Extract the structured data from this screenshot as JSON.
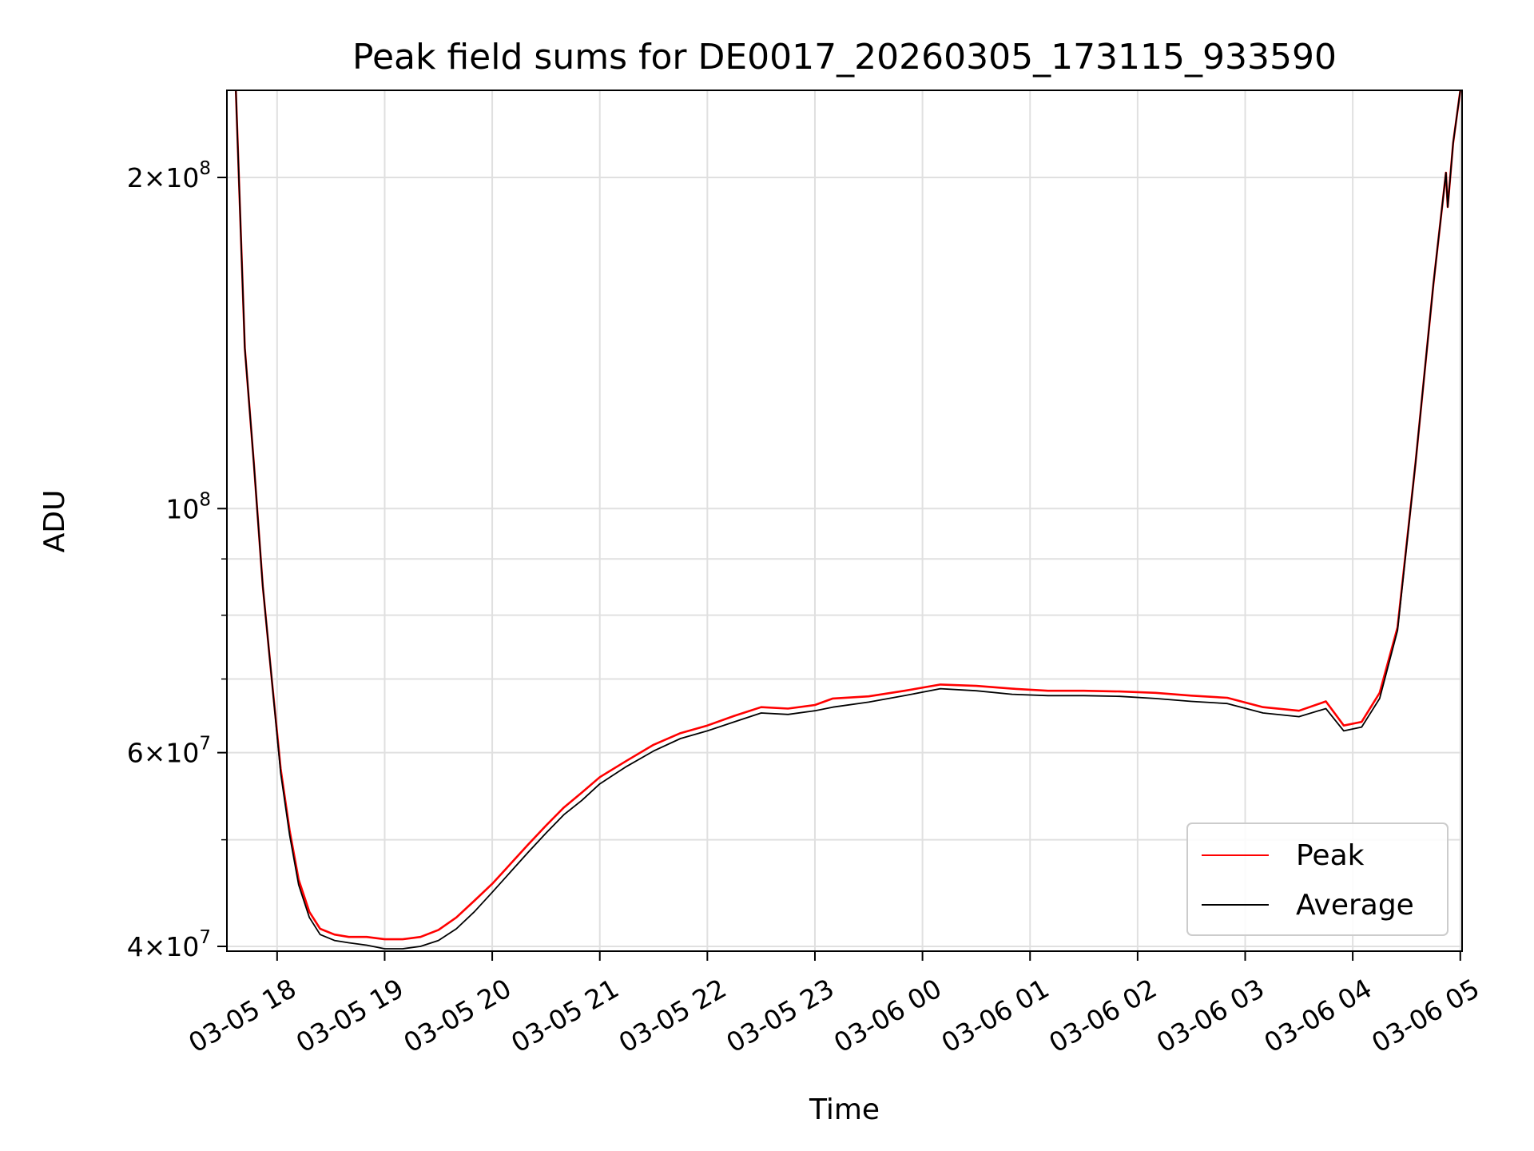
{
  "chart_data": {
    "type": "line",
    "title": "Peak field sums for DE0017_20260305_173115_933590",
    "xlabel": "Time",
    "ylabel": "ADU",
    "y_scale": "log",
    "grid": true,
    "legend_position": "lower-right",
    "xlim": [
      "2026-03-05 17:32",
      "2026-03-06 05:01"
    ],
    "ylim": [
      39600000,
      240000000
    ],
    "x_ticks": [
      {
        "value": "2026-03-05 18:00",
        "label": "03-05 18"
      },
      {
        "value": "2026-03-05 19:00",
        "label": "03-05 19"
      },
      {
        "value": "2026-03-05 20:00",
        "label": "03-05 20"
      },
      {
        "value": "2026-03-05 21:00",
        "label": "03-05 21"
      },
      {
        "value": "2026-03-05 22:00",
        "label": "03-05 22"
      },
      {
        "value": "2026-03-05 23:00",
        "label": "03-05 23"
      },
      {
        "value": "2026-03-06 00:00",
        "label": "03-06 00"
      },
      {
        "value": "2026-03-06 01:00",
        "label": "03-06 01"
      },
      {
        "value": "2026-03-06 02:00",
        "label": "03-06 02"
      },
      {
        "value": "2026-03-06 03:00",
        "label": "03-06 03"
      },
      {
        "value": "2026-03-06 04:00",
        "label": "03-06 04"
      },
      {
        "value": "2026-03-06 05:00",
        "label": "03-06 05"
      }
    ],
    "y_major_ticks": [
      {
        "value": 40000000,
        "mantissa": "4",
        "exp": "7"
      },
      {
        "value": 60000000,
        "mantissa": "6",
        "exp": "7"
      },
      {
        "value": 100000000,
        "mantissa": "",
        "exp": "8"
      },
      {
        "value": 200000000,
        "mantissa": "2",
        "exp": "8"
      }
    ],
    "y_minor_ticks": [
      50000000,
      70000000,
      80000000,
      90000000
    ],
    "series": [
      {
        "name": "Peak",
        "color": "#ff0000",
        "points": [
          [
            "2026-03-05 17:37",
            240000000
          ],
          [
            "2026-03-05 17:42",
            140000000
          ],
          [
            "2026-03-05 17:47",
            110000000
          ],
          [
            "2026-03-05 17:52",
            85000000
          ],
          [
            "2026-03-05 17:57",
            70000000
          ],
          [
            "2026-03-05 18:02",
            58000000
          ],
          [
            "2026-03-05 18:07",
            51000000
          ],
          [
            "2026-03-05 18:12",
            46000000
          ],
          [
            "2026-03-05 18:18",
            43000000
          ],
          [
            "2026-03-05 18:24",
            41500000
          ],
          [
            "2026-03-05 18:32",
            41000000
          ],
          [
            "2026-03-05 18:40",
            40800000
          ],
          [
            "2026-03-05 18:50",
            40800000
          ],
          [
            "2026-03-05 19:00",
            40600000
          ],
          [
            "2026-03-05 19:10",
            40600000
          ],
          [
            "2026-03-05 19:20",
            40800000
          ],
          [
            "2026-03-05 19:30",
            41400000
          ],
          [
            "2026-03-05 19:40",
            42500000
          ],
          [
            "2026-03-05 19:50",
            44000000
          ],
          [
            "2026-03-05 20:00",
            45600000
          ],
          [
            "2026-03-05 20:10",
            47500000
          ],
          [
            "2026-03-05 20:20",
            49500000
          ],
          [
            "2026-03-05 20:30",
            51500000
          ],
          [
            "2026-03-05 20:40",
            53500000
          ],
          [
            "2026-03-05 20:50",
            55200000
          ],
          [
            "2026-03-05 21:00",
            57000000
          ],
          [
            "2026-03-05 21:15",
            59000000
          ],
          [
            "2026-03-05 21:30",
            61000000
          ],
          [
            "2026-03-05 21:45",
            62500000
          ],
          [
            "2026-03-05 22:00",
            63500000
          ],
          [
            "2026-03-05 22:15",
            64800000
          ],
          [
            "2026-03-05 22:30",
            66000000
          ],
          [
            "2026-03-05 22:45",
            65800000
          ],
          [
            "2026-03-05 23:00",
            66300000
          ],
          [
            "2026-03-05 23:10",
            67200000
          ],
          [
            "2026-03-05 23:30",
            67500000
          ],
          [
            "2026-03-05 23:50",
            68300000
          ],
          [
            "2026-03-06 00:10",
            69200000
          ],
          [
            "2026-03-06 00:30",
            69000000
          ],
          [
            "2026-03-06 00:50",
            68600000
          ],
          [
            "2026-03-06 01:10",
            68300000
          ],
          [
            "2026-03-06 01:30",
            68300000
          ],
          [
            "2026-03-06 01:50",
            68200000
          ],
          [
            "2026-03-06 02:10",
            68000000
          ],
          [
            "2026-03-06 02:30",
            67600000
          ],
          [
            "2026-03-06 02:50",
            67300000
          ],
          [
            "2026-03-06 03:10",
            66000000
          ],
          [
            "2026-03-06 03:30",
            65500000
          ],
          [
            "2026-03-06 03:45",
            66800000
          ],
          [
            "2026-03-06 03:55",
            63500000
          ],
          [
            "2026-03-06 04:05",
            64000000
          ],
          [
            "2026-03-06 04:15",
            68000000
          ],
          [
            "2026-03-06 04:25",
            78000000
          ],
          [
            "2026-03-06 04:35",
            110000000
          ],
          [
            "2026-03-06 04:45",
            160000000
          ],
          [
            "2026-03-06 04:52",
            202000000
          ],
          [
            "2026-03-06 04:53",
            188000000
          ],
          [
            "2026-03-06 04:56",
            215000000
          ],
          [
            "2026-03-06 05:00",
            240000000
          ]
        ]
      },
      {
        "name": "Average",
        "color": "#000000",
        "points": [
          [
            "2026-03-05 17:37",
            240000000
          ],
          [
            "2026-03-05 17:42",
            140000000
          ],
          [
            "2026-03-05 17:47",
            110000000
          ],
          [
            "2026-03-05 17:52",
            85000000
          ],
          [
            "2026-03-05 17:57",
            70000000
          ],
          [
            "2026-03-05 18:02",
            57500000
          ],
          [
            "2026-03-05 18:07",
            50500000
          ],
          [
            "2026-03-05 18:12",
            45500000
          ],
          [
            "2026-03-05 18:18",
            42500000
          ],
          [
            "2026-03-05 18:24",
            41000000
          ],
          [
            "2026-03-05 18:32",
            40500000
          ],
          [
            "2026-03-05 18:40",
            40300000
          ],
          [
            "2026-03-05 18:50",
            40100000
          ],
          [
            "2026-03-05 19:00",
            39800000
          ],
          [
            "2026-03-05 19:10",
            39800000
          ],
          [
            "2026-03-05 19:20",
            40000000
          ],
          [
            "2026-03-05 19:30",
            40500000
          ],
          [
            "2026-03-05 19:40",
            41500000
          ],
          [
            "2026-03-05 19:50",
            43000000
          ],
          [
            "2026-03-05 20:00",
            44800000
          ],
          [
            "2026-03-05 20:10",
            46700000
          ],
          [
            "2026-03-05 20:20",
            48700000
          ],
          [
            "2026-03-05 20:30",
            50700000
          ],
          [
            "2026-03-05 20:40",
            52700000
          ],
          [
            "2026-03-05 20:50",
            54300000
          ],
          [
            "2026-03-05 21:00",
            56200000
          ],
          [
            "2026-03-05 21:15",
            58300000
          ],
          [
            "2026-03-05 21:30",
            60200000
          ],
          [
            "2026-03-05 21:45",
            61800000
          ],
          [
            "2026-03-05 22:00",
            62800000
          ],
          [
            "2026-03-05 22:15",
            64000000
          ],
          [
            "2026-03-05 22:30",
            65200000
          ],
          [
            "2026-03-05 22:45",
            65000000
          ],
          [
            "2026-03-05 23:00",
            65500000
          ],
          [
            "2026-03-05 23:10",
            66000000
          ],
          [
            "2026-03-05 23:30",
            66700000
          ],
          [
            "2026-03-05 23:50",
            67600000
          ],
          [
            "2026-03-06 00:10",
            68600000
          ],
          [
            "2026-03-06 00:30",
            68300000
          ],
          [
            "2026-03-06 00:50",
            67800000
          ],
          [
            "2026-03-06 01:10",
            67600000
          ],
          [
            "2026-03-06 01:30",
            67600000
          ],
          [
            "2026-03-06 01:50",
            67500000
          ],
          [
            "2026-03-06 02:10",
            67200000
          ],
          [
            "2026-03-06 02:30",
            66800000
          ],
          [
            "2026-03-06 02:50",
            66500000
          ],
          [
            "2026-03-06 03:10",
            65200000
          ],
          [
            "2026-03-06 03:30",
            64700000
          ],
          [
            "2026-03-06 03:45",
            65800000
          ],
          [
            "2026-03-06 03:55",
            62800000
          ],
          [
            "2026-03-06 04:05",
            63300000
          ],
          [
            "2026-03-06 04:15",
            67200000
          ],
          [
            "2026-03-06 04:25",
            77500000
          ],
          [
            "2026-03-06 04:35",
            110000000
          ],
          [
            "2026-03-06 04:45",
            160000000
          ],
          [
            "2026-03-06 04:52",
            202000000
          ],
          [
            "2026-03-06 04:53",
            188000000
          ],
          [
            "2026-03-06 04:56",
            215000000
          ],
          [
            "2026-03-06 05:00",
            240000000
          ]
        ]
      }
    ]
  }
}
